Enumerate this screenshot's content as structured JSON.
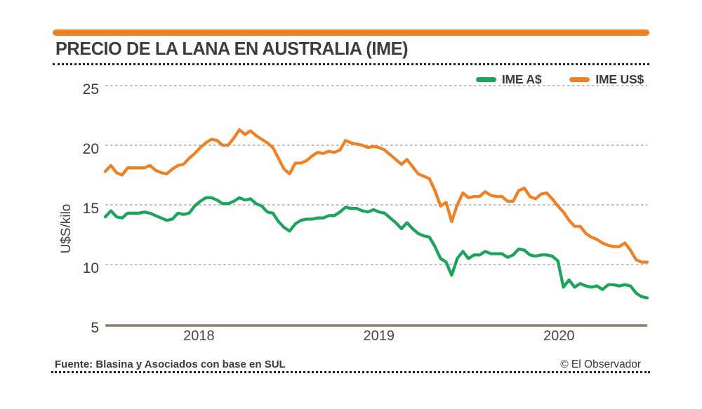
{
  "title": "PRECIO DE LA LANA EN AUSTRALIA (IME)",
  "legend": [
    {
      "id": "ime-aud",
      "label": "IME A$",
      "color": "#1ca45c"
    },
    {
      "id": "ime-usd",
      "label": "IME US$",
      "color": "#ee8125"
    }
  ],
  "footer": {
    "source": "Fuente: Blasina y Asociados con base en SUL",
    "credit": "© El Observador"
  },
  "colors": {
    "accent_bar": "#ef8223",
    "green_line": "#1ca45c",
    "orange_line": "#ee8125",
    "title_text": "#3c3c3c",
    "gridline": "#9b9b9b",
    "axis_line": "#8b8077"
  },
  "chart_data": {
    "type": "line",
    "title": "PRECIO DE LA LANA EN AUSTRALIA (IME)",
    "xlabel": "",
    "ylabel": "U$S/kilo",
    "grid": "horizontal-dashed",
    "legend_position": "top-right",
    "x_range": [
      2017.48,
      2020.49
    ],
    "y_range": [
      5,
      25
    ],
    "y_ticks": [
      5,
      10,
      15,
      20,
      25
    ],
    "x_ticks": [
      "2018",
      "2019",
      "2020"
    ],
    "x_tick_positions": [
      2018,
      2019,
      2020
    ],
    "x_sampling": "uniform weekly from mid-2017 to mid-2020",
    "series": [
      {
        "id": "ime-aud",
        "name": "IME A$",
        "color": "#1ca45c",
        "values": [
          14.0,
          14.5,
          14.0,
          13.9,
          14.3,
          14.3,
          14.3,
          14.4,
          14.3,
          14.1,
          13.9,
          13.7,
          13.8,
          14.3,
          14.2,
          14.3,
          14.9,
          15.3,
          15.6,
          15.6,
          15.4,
          15.1,
          15.1,
          15.3,
          15.6,
          15.4,
          15.5,
          15.1,
          14.9,
          14.4,
          14.3,
          13.6,
          13.1,
          12.8,
          13.4,
          13.7,
          13.8,
          13.8,
          13.9,
          13.9,
          14.1,
          14.1,
          14.4,
          14.8,
          14.7,
          14.7,
          14.5,
          14.4,
          14.6,
          14.4,
          14.3,
          13.9,
          13.5,
          13.0,
          13.5,
          13.0,
          12.6,
          12.4,
          12.3,
          11.5,
          10.5,
          10.2,
          9.1,
          10.5,
          11.1,
          10.5,
          10.8,
          10.8,
          11.1,
          10.9,
          10.9,
          10.9,
          10.6,
          10.8,
          11.3,
          11.2,
          10.8,
          10.7,
          10.8,
          10.8,
          10.7,
          10.3,
          8.1,
          8.7,
          8.1,
          8.4,
          8.2,
          8.1,
          8.2,
          7.9,
          8.3,
          8.3,
          8.2,
          8.3,
          8.2,
          7.6,
          7.3,
          7.2
        ]
      },
      {
        "id": "ime-usd",
        "name": "IME US$",
        "color": "#ee8125",
        "values": [
          17.8,
          18.3,
          17.7,
          17.5,
          18.1,
          18.1,
          18.1,
          18.1,
          18.3,
          17.9,
          17.7,
          17.6,
          18.0,
          18.3,
          18.4,
          18.9,
          19.3,
          19.8,
          20.2,
          20.5,
          20.4,
          20.0,
          20.0,
          20.6,
          21.3,
          20.9,
          21.2,
          20.8,
          20.5,
          20.2,
          19.8,
          18.9,
          18.0,
          17.6,
          18.5,
          18.5,
          18.7,
          19.1,
          19.4,
          19.3,
          19.5,
          19.4,
          19.6,
          20.4,
          20.2,
          20.1,
          20.0,
          19.8,
          19.9,
          19.8,
          19.6,
          19.2,
          18.8,
          18.4,
          18.8,
          18.2,
          17.6,
          17.4,
          17.2,
          16.2,
          14.9,
          15.2,
          13.6,
          15.0,
          16.0,
          15.6,
          15.7,
          15.7,
          16.1,
          15.8,
          15.7,
          15.7,
          15.3,
          15.3,
          16.2,
          16.4,
          15.7,
          15.5,
          15.9,
          16.0,
          15.5,
          14.9,
          14.4,
          13.7,
          13.2,
          13.2,
          12.6,
          12.3,
          12.1,
          11.8,
          11.6,
          11.5,
          11.5,
          11.8,
          11.2,
          10.4,
          10.2,
          10.2
        ]
      }
    ]
  }
}
